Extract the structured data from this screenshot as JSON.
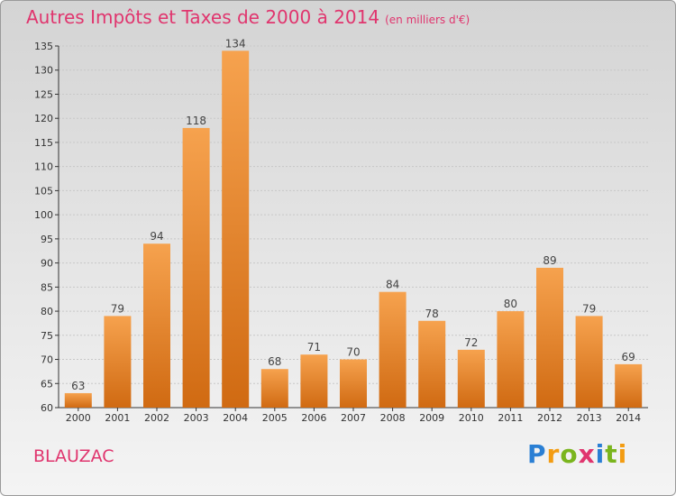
{
  "header": {
    "title": "Autres Impôts et Taxes de 2000 à 2014",
    "subtitle": "(en milliers d'€)"
  },
  "footer": {
    "commune": "BLAUZAC",
    "logo_text": "Proxiti"
  },
  "colors": {
    "bar_light": "#f6a24e",
    "bar_dark": "#d06a12",
    "title": "#e0356e",
    "grid": "#c8c8c8"
  },
  "chart_data": {
    "type": "bar",
    "title": "Autres Impôts et Taxes de 2000 à 2014",
    "subtitle": "(en milliers d'€)",
    "categories": [
      "2000",
      "2001",
      "2002",
      "2003",
      "2004",
      "2005",
      "2006",
      "2007",
      "2008",
      "2009",
      "2010",
      "2011",
      "2012",
      "2013",
      "2014"
    ],
    "values": [
      63,
      79,
      94,
      118,
      134,
      68,
      71,
      70,
      84,
      78,
      72,
      80,
      89,
      79,
      69
    ],
    "ylim": [
      60,
      135
    ],
    "yticks": [
      60,
      65,
      70,
      75,
      80,
      85,
      90,
      95,
      100,
      105,
      110,
      115,
      120,
      125,
      130,
      135
    ],
    "grid": true,
    "data_labels": true
  }
}
